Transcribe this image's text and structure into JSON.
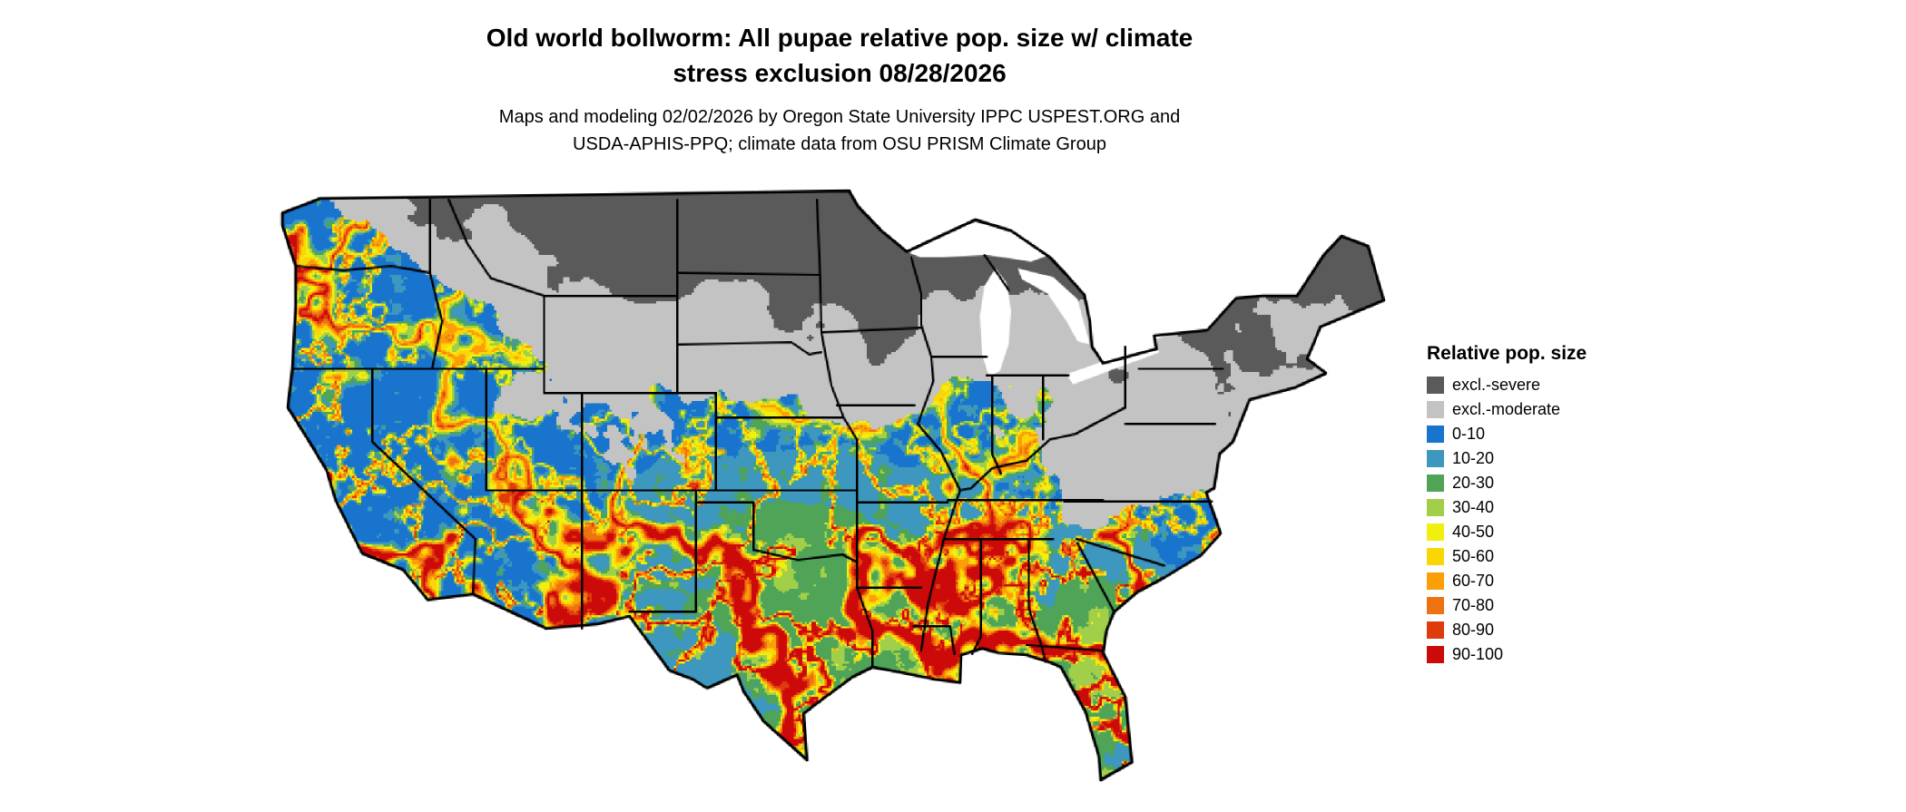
{
  "page": {
    "background": "#ffffff"
  },
  "title": {
    "line1": "Old world bollworm: All pupae relative pop. size w/ climate",
    "line2": "stress exclusion 08/28/2026"
  },
  "subtitle": {
    "line1": "Maps and modeling 02/02/2026 by Oregon State University IPPC USPEST.ORG and",
    "line2": "USDA-APHIS-PPQ; climate data from OSU PRISM Climate Group"
  },
  "map": {
    "region": "Continental United States",
    "border_color": "#000000",
    "water_color": "#ffffff"
  },
  "legend": {
    "title": "Relative pop. size",
    "entries": [
      {
        "label": "excl.-severe",
        "color": "#5a5a5a"
      },
      {
        "label": "excl.-moderate",
        "color": "#c3c3c3"
      },
      {
        "label": "0-10",
        "color": "#1874cd"
      },
      {
        "label": "10-20",
        "color": "#3d97be"
      },
      {
        "label": "20-30",
        "color": "#4fa457"
      },
      {
        "label": "30-40",
        "color": "#a2cf4a"
      },
      {
        "label": "40-50",
        "color": "#f0ef10"
      },
      {
        "label": "50-60",
        "color": "#fbd606"
      },
      {
        "label": "60-70",
        "color": "#fb9e07"
      },
      {
        "label": "70-80",
        "color": "#ef7210"
      },
      {
        "label": "80-90",
        "color": "#df3b0d"
      },
      {
        "label": "90-100",
        "color": "#cc0a0a"
      }
    ]
  }
}
